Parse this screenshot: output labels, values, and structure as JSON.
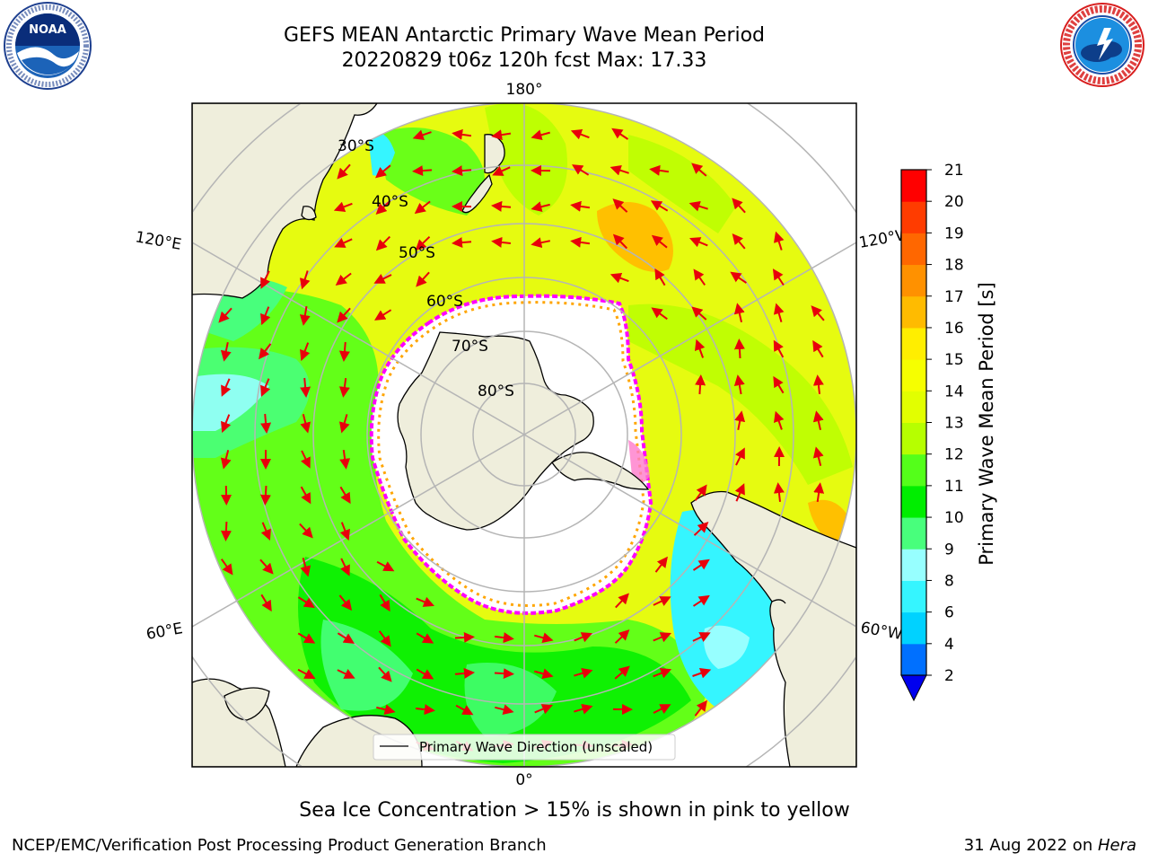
{
  "header": {
    "title_line1": "GEFS MEAN Antarctic Primary Wave Mean Period",
    "title_line2": "20220829 t06z 120h fcst   Max: 17.33"
  },
  "logos": {
    "left": {
      "name": "noaa-logo",
      "text": "NOAA",
      "ring_text": "NATIONAL OCEANIC AND ATMOSPHERIC ADMINISTRATION · U.S. DEPARTMENT OF COMMERCE"
    },
    "right": {
      "name": "nws-logo",
      "ring_text": "NATIONAL WEATHER SERVICE"
    }
  },
  "map": {
    "projection": "south-polar-stereographic",
    "longitude_labels": {
      "top": "180°",
      "bottom": "0°",
      "left_upper": "120°E",
      "left_lower": "60°E",
      "right_upper": "120°W",
      "right_lower": "60°W"
    },
    "latitude_labels": [
      "30°S",
      "40°S",
      "50°S",
      "60°S",
      "70°S",
      "80°S"
    ],
    "legend_label": "Primary Wave Direction (unscaled)",
    "arrow_color": "#e8000b",
    "land_color": "#efeedc",
    "sea_ice_edge_colors": [
      "#ff00ff",
      "#ffa500",
      "#ffff00"
    ]
  },
  "colorbar": {
    "title": "Primary Wave Mean Period [s]",
    "ticks": [
      "2",
      "4",
      "6",
      "8",
      "9",
      "10",
      "11",
      "12",
      "13",
      "14",
      "15",
      "16",
      "17",
      "18",
      "19",
      "20",
      "21"
    ],
    "colors": [
      "#0070ff",
      "#00d2ff",
      "#35f5ff",
      "#97ffff",
      "#48ff7c",
      "#00ee00",
      "#54ff1a",
      "#b6ff00",
      "#e2ff00",
      "#f6ff00",
      "#ffee00",
      "#ffbb00",
      "#ff9100",
      "#ff6700",
      "#ff3c00",
      "#ff0000"
    ],
    "extend_color": "#0000ee"
  },
  "caption": "Sea Ice Concentration > 15% is shown in pink to yellow",
  "footer": {
    "left": "NCEP/EMC/Verification Post Processing Product Generation Branch",
    "right_prefix": "31 Aug 2022 on ",
    "right_host": "Hera"
  }
}
